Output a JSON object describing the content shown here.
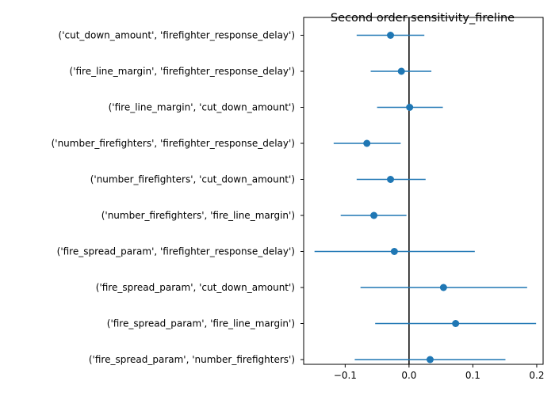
{
  "chart_data": {
    "type": "scatter",
    "title": "Second order sensitivity_fireline",
    "xlim": [
      -0.165,
      0.21
    ],
    "xticks": [
      -0.1,
      0.0,
      0.1,
      0.2
    ],
    "xtick_labels": [
      "−0.1",
      "0.0",
      "0.1",
      "0.2"
    ],
    "zero_line": 0,
    "point_color": "#1f77b4",
    "line_color": "#000000",
    "categories": [
      "('cut_down_amount', 'firefighter_response_delay')",
      "('fire_line_margin', 'firefighter_response_delay')",
      "('fire_line_margin', 'cut_down_amount')",
      "('number_firefighters', 'firefighter_response_delay')",
      "('number_firefighters', 'cut_down_amount')",
      "('number_firefighters', 'fire_line_margin')",
      "('fire_spread_param', 'firefighter_response_delay')",
      "('fire_spread_param', 'cut_down_amount')",
      "('fire_spread_param', 'fire_line_margin')",
      "('fire_spread_param', 'number_firefighters')"
    ],
    "values": [
      -0.029,
      -0.012,
      0.001,
      -0.066,
      -0.029,
      -0.055,
      -0.023,
      0.054,
      0.073,
      0.033
    ],
    "err_low": [
      -0.082,
      -0.06,
      -0.05,
      -0.118,
      -0.082,
      -0.107,
      -0.148,
      -0.076,
      -0.053,
      -0.085
    ],
    "err_high": [
      0.024,
      0.035,
      0.053,
      -0.013,
      0.026,
      -0.004,
      0.103,
      0.185,
      0.199,
      0.151
    ]
  }
}
